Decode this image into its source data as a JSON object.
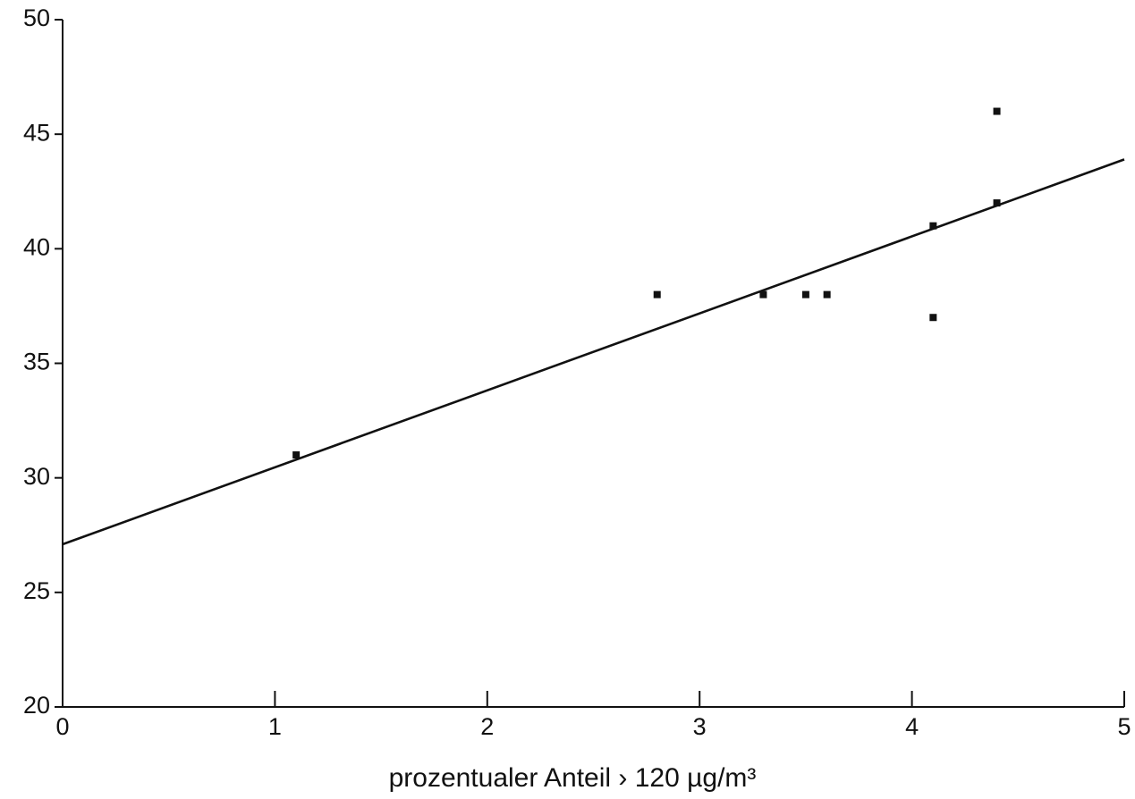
{
  "chart_data": {
    "type": "scatter",
    "x_label": "prozentualer Anteil › 120 µg/m³",
    "points": {
      "color": "#111111",
      "x": [
        1.1,
        2.8,
        3.3,
        3.5,
        3.6,
        4.1,
        4.1,
        4.4,
        4.4
      ],
      "y": [
        31,
        38,
        38,
        38,
        38,
        41,
        37,
        46,
        42
      ]
    },
    "fit": {
      "color": "#111111",
      "x": [
        0,
        5
      ],
      "y": [
        27.1,
        43.9
      ]
    },
    "xlim": [
      0,
      5
    ],
    "xticks": [
      0,
      1,
      2,
      3,
      4,
      5
    ],
    "ylim": [
      20,
      50
    ],
    "yticks": [
      20,
      25,
      30,
      35,
      40,
      45,
      50
    ],
    "grid": false
  }
}
